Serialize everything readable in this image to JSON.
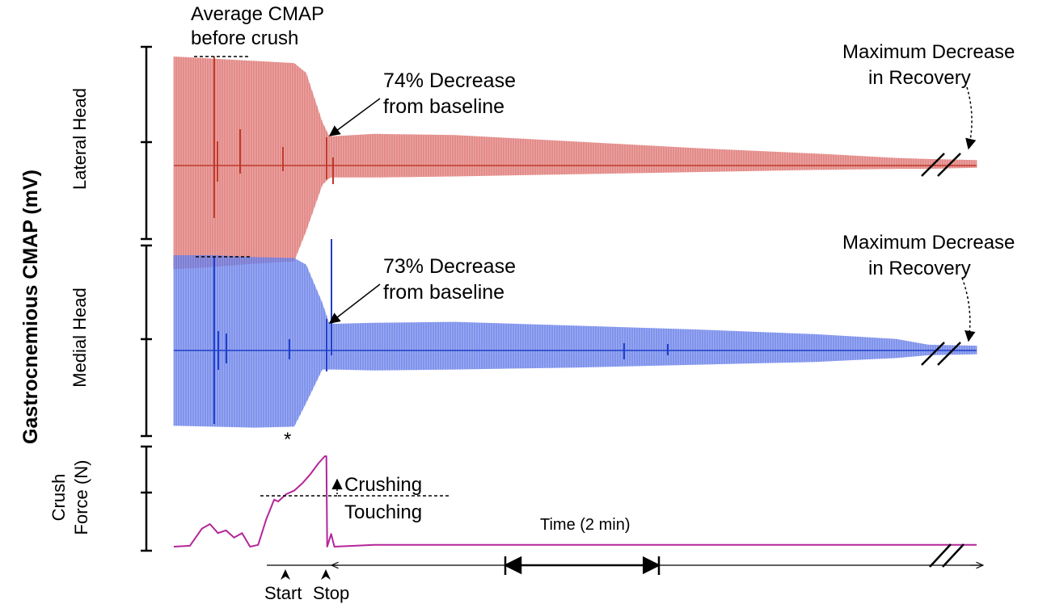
{
  "chart_data": [
    {
      "type": "line",
      "panel": "Lateral Head",
      "ylabel": "Lateral Head",
      "color": "#c0392b",
      "fill_color": "#e58585",
      "envelope": {
        "x": [
          0,
          0.05,
          0.1,
          0.15,
          0.165,
          0.185,
          0.193,
          0.196,
          0.2,
          0.25,
          0.35,
          0.5,
          0.65,
          0.8,
          0.9,
          0.94,
          1.0
        ],
        "upper": [
          1.0,
          0.98,
          0.96,
          0.94,
          0.85,
          0.4,
          0.28,
          0.27,
          0.27,
          0.29,
          0.28,
          0.22,
          0.16,
          0.11,
          0.07,
          0.06,
          0.05
        ],
        "lower": [
          -0.95,
          -0.93,
          -0.9,
          -0.88,
          -0.6,
          -0.18,
          -0.12,
          -0.11,
          -0.11,
          -0.11,
          -0.1,
          -0.08,
          -0.06,
          -0.04,
          -0.03,
          -0.03,
          -0.02
        ]
      },
      "annotations": {
        "baseline_line1": "Average CMAP",
        "baseline_line2": "before crush",
        "decrease_line1": "74% Decrease",
        "decrease_line2": "from baseline",
        "recovery_line1": "Maximum Decrease",
        "recovery_line2": "in Recovery"
      }
    },
    {
      "type": "line",
      "panel": "Medial Head",
      "ylabel": "Medial Head",
      "color": "#1f3fc9",
      "fill_color": "#7b8ff0",
      "envelope": {
        "x": [
          0,
          0.05,
          0.1,
          0.15,
          0.165,
          0.185,
          0.193,
          0.2,
          0.25,
          0.35,
          0.5,
          0.65,
          0.8,
          0.9,
          0.94,
          1.0
        ],
        "upper": [
          1.0,
          1.0,
          0.98,
          0.97,
          0.9,
          0.5,
          0.3,
          0.28,
          0.29,
          0.3,
          0.26,
          0.22,
          0.17,
          0.12,
          0.06,
          0.05
        ],
        "lower": [
          -0.79,
          -0.8,
          -0.81,
          -0.8,
          -0.55,
          -0.2,
          -0.2,
          -0.2,
          -0.21,
          -0.2,
          -0.18,
          -0.15,
          -0.12,
          -0.08,
          -0.05,
          -0.04
        ]
      },
      "annotations": {
        "asterisk": "*",
        "decrease_line1": "73% Decrease",
        "decrease_line2": "from baseline",
        "recovery_line1": "Maximum Decrease",
        "recovery_line2": "in Recovery"
      }
    },
    {
      "type": "line",
      "panel": "Crush Force",
      "ylabel_line1": "Crush",
      "ylabel_line2": "Force (N)",
      "color": "#b4259a",
      "series": {
        "x": [
          0,
          0.02,
          0.035,
          0.045,
          0.055,
          0.065,
          0.075,
          0.085,
          0.095,
          0.105,
          0.115,
          0.125,
          0.13,
          0.14,
          0.15,
          0.16,
          0.17,
          0.18,
          0.188,
          0.19,
          0.191,
          0.196,
          0.2,
          0.25,
          0.4,
          0.6,
          0.8,
          0.9,
          0.94,
          1.0
        ],
        "y": [
          0.0,
          0.01,
          0.2,
          0.25,
          0.15,
          0.18,
          0.1,
          0.15,
          0.0,
          0.02,
          0.3,
          0.52,
          0.5,
          0.58,
          0.62,
          0.7,
          0.8,
          0.92,
          1.0,
          1.0,
          0.0,
          0.14,
          0.0,
          0.02,
          0.02,
          0.02,
          0.02,
          0.02,
          0.02,
          0.02
        ]
      },
      "threshold": 0.5,
      "annotations": {
        "above_label": "Crushing",
        "below_label": "Touching",
        "start_label": "Start",
        "stop_label": "Stop",
        "time_label": "Time (2 min)"
      }
    }
  ],
  "figure": {
    "ylabel": "Gastrocnemious CMAP (mV)"
  }
}
